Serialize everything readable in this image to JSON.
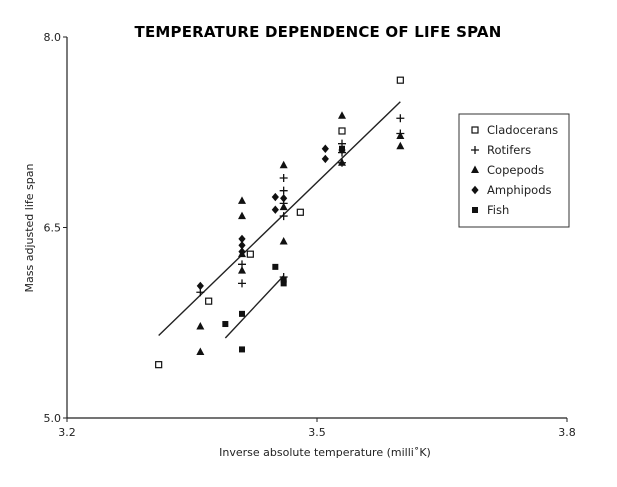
{
  "chart_data": {
    "type": "scatter",
    "title": "TEMPERATURE DEPENDENCE OF LIFE SPAN",
    "xlabel": "Inverse absolute temperature (milli˚K)",
    "ylabel": "Mass adjusted life span",
    "xlim": [
      3.2,
      3.8
    ],
    "ylim": [
      5.0,
      8.0
    ],
    "xticks": [
      "3.2",
      "3.5",
      "3.8"
    ],
    "yticks": [
      "5.0",
      "6.5",
      "8.0"
    ],
    "grid": false,
    "legend_position": "right",
    "series": [
      {
        "name": "Cladocerans",
        "marker": "open-square",
        "points": [
          [
            3.31,
            5.42
          ],
          [
            3.37,
            5.92
          ],
          [
            3.42,
            6.29
          ],
          [
            3.48,
            6.62
          ],
          [
            3.53,
            7.26
          ],
          [
            3.6,
            7.66
          ]
        ]
      },
      {
        "name": "Rotifers",
        "marker": "plus",
        "points": [
          [
            3.36,
            5.99
          ],
          [
            3.41,
            6.06
          ],
          [
            3.41,
            6.21
          ],
          [
            3.46,
            6.11
          ],
          [
            3.46,
            6.59
          ],
          [
            3.46,
            6.69
          ],
          [
            3.46,
            6.79
          ],
          [
            3.46,
            6.89
          ],
          [
            3.53,
            7.01
          ],
          [
            3.53,
            7.09
          ],
          [
            3.53,
            7.16
          ],
          [
            3.6,
            7.24
          ],
          [
            3.6,
            7.36
          ]
        ]
      },
      {
        "name": "Copepods",
        "marker": "filled-triangle",
        "points": [
          [
            3.36,
            5.52
          ],
          [
            3.36,
            5.72
          ],
          [
            3.41,
            6.16
          ],
          [
            3.41,
            6.29
          ],
          [
            3.41,
            6.59
          ],
          [
            3.41,
            6.71
          ],
          [
            3.46,
            6.39
          ],
          [
            3.46,
            6.66
          ],
          [
            3.46,
            6.99
          ],
          [
            3.53,
            7.01
          ],
          [
            3.53,
            7.38
          ],
          [
            3.6,
            7.14
          ],
          [
            3.6,
            7.22
          ]
        ]
      },
      {
        "name": "Amphipods",
        "marker": "filled-diamond",
        "points": [
          [
            3.36,
            6.04
          ],
          [
            3.41,
            6.31
          ],
          [
            3.41,
            6.36
          ],
          [
            3.41,
            6.41
          ],
          [
            3.45,
            6.64
          ],
          [
            3.45,
            6.74
          ],
          [
            3.46,
            6.73
          ],
          [
            3.51,
            7.04
          ],
          [
            3.51,
            7.12
          ],
          [
            3.53,
            7.11
          ]
        ]
      },
      {
        "name": "Fish",
        "marker": "filled-square",
        "points": [
          [
            3.39,
            5.74
          ],
          [
            3.41,
            5.54
          ],
          [
            3.41,
            5.82
          ],
          [
            3.45,
            6.19
          ],
          [
            3.46,
            6.06
          ],
          [
            3.46,
            6.09
          ],
          [
            3.53,
            7.12
          ]
        ]
      }
    ],
    "fit_lines": [
      {
        "x": [
          3.31,
          3.6
        ],
        "y": [
          5.65,
          7.49
        ]
      },
      {
        "x": [
          3.39,
          3.46
        ],
        "y": [
          5.63,
          6.12
        ]
      }
    ]
  }
}
